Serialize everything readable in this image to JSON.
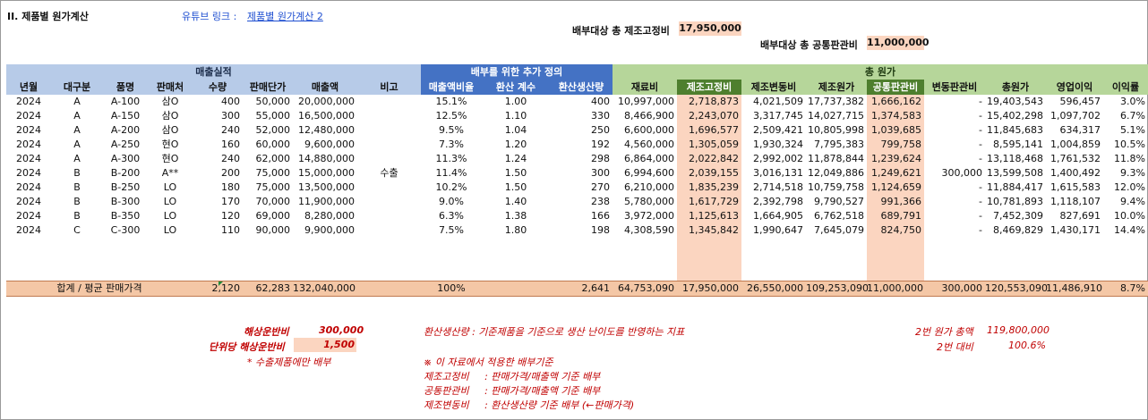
{
  "title": "II. 제품별 원가계산",
  "youtube": {
    "label": "유튜브 링크 :",
    "link_text": "제품별 원가계산 2"
  },
  "allocation": {
    "fixed_label": "배부대상 총 제조고정비",
    "fixed_value": "17,950,000",
    "sga_label": "배부대상 총 공통판관비",
    "sga_value": "11,000,000"
  },
  "groups": {
    "sales": "매출실적",
    "additional": "배부를 위한 추가 정의",
    "total_cost": "총 원가"
  },
  "headers": [
    "년월",
    "대구분",
    "품명",
    "판매처",
    "수량",
    "판매단가",
    "매출액",
    "비고",
    "매출액비율",
    "환산 계수",
    "환산생산량",
    "재료비",
    "제조고정비",
    "제조변동비",
    "제조원가",
    "공통판관비",
    "변동판관비",
    "총원가",
    "영업이익",
    "이익률"
  ],
  "rows": [
    [
      "2024",
      "A",
      "A-100",
      "삼O",
      "400",
      "50,000",
      "20,000,000",
      "",
      "15.1%",
      "1.00",
      "400",
      "10,997,000",
      "2,718,873",
      "4,021,509",
      "17,737,382",
      "1,666,162",
      "-",
      "19,403,543",
      "596,457",
      "3.0%"
    ],
    [
      "2024",
      "A",
      "A-150",
      "삼O",
      "300",
      "55,000",
      "16,500,000",
      "",
      "12.5%",
      "1.10",
      "330",
      "8,466,900",
      "2,243,070",
      "3,317,745",
      "14,027,715",
      "1,374,583",
      "-",
      "15,402,298",
      "1,097,702",
      "6.7%"
    ],
    [
      "2024",
      "A",
      "A-200",
      "삼O",
      "240",
      "52,000",
      "12,480,000",
      "",
      "9.5%",
      "1.04",
      "250",
      "6,600,000",
      "1,696,577",
      "2,509,421",
      "10,805,998",
      "1,039,685",
      "-",
      "11,845,683",
      "634,317",
      "5.1%"
    ],
    [
      "2024",
      "A",
      "A-250",
      "현O",
      "160",
      "60,000",
      "9,600,000",
      "",
      "7.3%",
      "1.20",
      "192",
      "4,560,000",
      "1,305,059",
      "1,930,324",
      "7,795,383",
      "799,758",
      "-",
      "8,595,141",
      "1,004,859",
      "10.5%"
    ],
    [
      "2024",
      "A",
      "A-300",
      "현O",
      "240",
      "62,000",
      "14,880,000",
      "",
      "11.3%",
      "1.24",
      "298",
      "6,864,000",
      "2,022,842",
      "2,992,002",
      "11,878,844",
      "1,239,624",
      "-",
      "13,118,468",
      "1,761,532",
      "11.8%"
    ],
    [
      "2024",
      "B",
      "B-200",
      "A**",
      "200",
      "75,000",
      "15,000,000",
      "수출",
      "11.4%",
      "1.50",
      "300",
      "6,994,600",
      "2,039,155",
      "3,016,131",
      "12,049,886",
      "1,249,621",
      "300,000",
      "13,599,508",
      "1,400,492",
      "9.3%"
    ],
    [
      "2024",
      "B",
      "B-250",
      "LO",
      "180",
      "75,000",
      "13,500,000",
      "",
      "10.2%",
      "1.50",
      "270",
      "6,210,000",
      "1,835,239",
      "2,714,518",
      "10,759,758",
      "1,124,659",
      "-",
      "11,884,417",
      "1,615,583",
      "12.0%"
    ],
    [
      "2024",
      "B",
      "B-300",
      "LO",
      "170",
      "70,000",
      "11,900,000",
      "",
      "9.0%",
      "1.40",
      "238",
      "5,780,000",
      "1,617,729",
      "2,392,798",
      "9,790,527",
      "991,366",
      "-",
      "10,781,893",
      "1,118,107",
      "9.4%"
    ],
    [
      "2024",
      "B",
      "B-350",
      "LO",
      "120",
      "69,000",
      "8,280,000",
      "",
      "6.3%",
      "1.38",
      "166",
      "3,972,000",
      "1,125,613",
      "1,664,905",
      "6,762,518",
      "689,791",
      "-",
      "7,452,309",
      "827,691",
      "10.0%"
    ],
    [
      "2024",
      "C",
      "C-300",
      "LO",
      "110",
      "90,000",
      "9,900,000",
      "",
      "7.5%",
      "1.80",
      "198",
      "4,308,590",
      "1,345,842",
      "1,990,647",
      "7,645,079",
      "824,750",
      "-",
      "8,469,829",
      "1,430,171",
      "14.4%"
    ]
  ],
  "totals": {
    "label": "합계 / 평균 판매가격",
    "qty": "2,120",
    "unit_price": "62,283",
    "sales": "132,040,000",
    "ratio": "100%",
    "converted": "2,641",
    "material": "64,753,090",
    "fixed": "17,950,000",
    "variable": "26,550,000",
    "mfg_cost": "109,253,090",
    "common_sga": "11,000,000",
    "var_sga": "300,000",
    "total_cost": "120,553,090",
    "op_profit": "11,486,910",
    "margin": "8.7%"
  },
  "footer": {
    "shipping_label": "해상운반비",
    "shipping_value": "300,000",
    "unit_shipping_label": "단위당 해상운반비",
    "unit_shipping_value": "1,500",
    "export_note": "* 수출제품에만 배부",
    "definition": "환산생산량 : 기준제품을 기준으로 생산 난이도를 반영하는 지표",
    "criteria_title": "※ 이 자료에서 적용한 배부기준",
    "criteria": [
      "제조고정비     : 판매가격/매출액 기준 배부",
      "공통판관비     : 판매가격/매출액 기준 배부",
      "제조변동비     : 환산생산량 기준 배부 (←판매가격)"
    ],
    "cmp1_label": "2번 원가 총액",
    "cmp1_value": "119,800,000",
    "cmp2_label": "2번 대비",
    "cmp2_value": "100.6%"
  }
}
